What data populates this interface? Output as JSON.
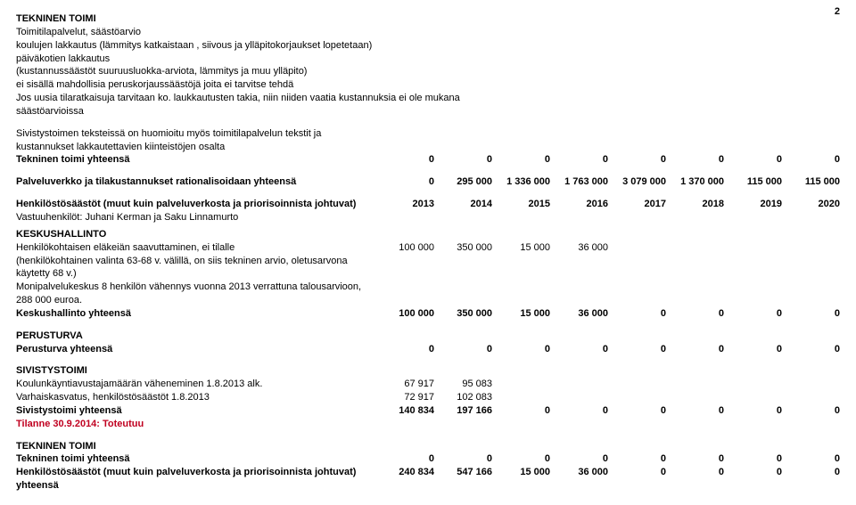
{
  "page": {
    "number": "2"
  },
  "sections": {
    "tekninen_toimi": {
      "heading": "TEKNINEN TOIMI",
      "lines": [
        "Toimitilapalvelut, säästöarvio",
        "koulujen lakkautus (lämmitys katkaistaan , siivous ja ylläpitokorjaukset lopetetaan)",
        "päiväkotien lakkautus",
        "(kustannussäästöt suuruusluokka-arviota, lämmitys ja muu ylläpito)",
        "ei sisällä mahdollisia peruskorjaussäästöjä joita ei tarvitse tehdä",
        "Jos uusia tilaratkaisuja tarvitaan ko. laukkautusten takia, niin niiden vaatia kustannuksia ei ole mukana",
        "säästöarvioissa"
      ],
      "note2": [
        "Sivistystoimen teksteissä on huomioitu myös toimitilapalvelun tekstit ja",
        "kustannukset lakkautettavien kiinteistöjen osalta"
      ],
      "total_label": "Tekninen toimi yhteensä",
      "total_values": [
        "0",
        "0",
        "0",
        "0",
        "0",
        "0",
        "0",
        "0"
      ]
    },
    "rational": {
      "label": "Palveluverkko ja tilakustannukset rationalisoidaan yhteensä",
      "values": [
        "0",
        "295 000",
        "1 336 000",
        "1 763 000",
        "3 079 000",
        "1 370 000",
        "115 000",
        "115 000"
      ]
    },
    "henkilosto_header": {
      "label": "Henkilöstösäästöt (muut kuin palveluverkosta ja priorisoinnista johtuvat)",
      "years": [
        "2013",
        "2014",
        "2015",
        "2016",
        "2017",
        "2018",
        "2019",
        "2020"
      ]
    },
    "vastuu": "Vastuuhenkilöt: Juhani Kerman ja Saku Linnamurto",
    "keskushallinto": {
      "heading": "KESKUSHALLINTO",
      "rows": [
        {
          "label": "Henkilökohtaisen eläkeiän saavuttaminen, ei tilalle",
          "values": [
            "100 000",
            "350 000",
            "15 000",
            "36 000",
            "",
            "",
            "",
            ""
          ]
        },
        {
          "label": "(henkilökohtainen valinta 63-68 v. välillä, on siis tekninen arvio, oletusarvona käytetty 68 v.)",
          "values": [
            "",
            "",
            "",
            "",
            "",
            "",
            "",
            ""
          ]
        },
        {
          "label": "Monipalvelukeskus 8 henkilön vähennys vuonna 2013 verrattuna talousarvioon, 288 000 euroa.",
          "values": [
            "",
            "",
            "",
            "",
            "",
            "",
            "",
            ""
          ]
        }
      ],
      "total_label": "Keskushallinto yhteensä",
      "total_values": [
        "100 000",
        "350 000",
        "15 000",
        "36 000",
        "0",
        "0",
        "0",
        "0"
      ]
    },
    "perusturva": {
      "heading": "PERUSTURVA",
      "total_label": "Perusturva yhteensä",
      "total_values": [
        "0",
        "0",
        "0",
        "0",
        "0",
        "0",
        "0",
        "0"
      ]
    },
    "sivistys": {
      "heading": "SIVISTYSTOIMI",
      "rows": [
        {
          "label": "Koulunkäyntiavustajamäärän väheneminen 1.8.2013 alk.",
          "values": [
            "67 917",
            "95 083",
            "",
            "",
            "",
            "",
            "",
            ""
          ]
        },
        {
          "label": "Varhaiskasvatus, henkilöstösäästöt 1.8.2013",
          "values": [
            "72 917",
            "102 083",
            "",
            "",
            "",
            "",
            "",
            ""
          ]
        }
      ],
      "total_label": "Sivistystoimi yhteensä",
      "total_values": [
        "140 834",
        "197 166",
        "0",
        "0",
        "0",
        "0",
        "0",
        "0"
      ],
      "status": "Tilanne 30.9.2014: Toteutuu"
    },
    "tekninen2": {
      "heading": "TEKNINEN TOIMI",
      "total_label": "Tekninen toimi yhteensä",
      "total_values": [
        "0",
        "0",
        "0",
        "0",
        "0",
        "0",
        "0",
        "0"
      ]
    },
    "grand": {
      "label": "Henkilöstösäästöt (muut kuin palveluverkosta ja priorisoinnista johtuvat) yhteensä",
      "values": [
        "240 834",
        "547 166",
        "15 000",
        "36 000",
        "0",
        "0",
        "0",
        "0"
      ]
    }
  }
}
